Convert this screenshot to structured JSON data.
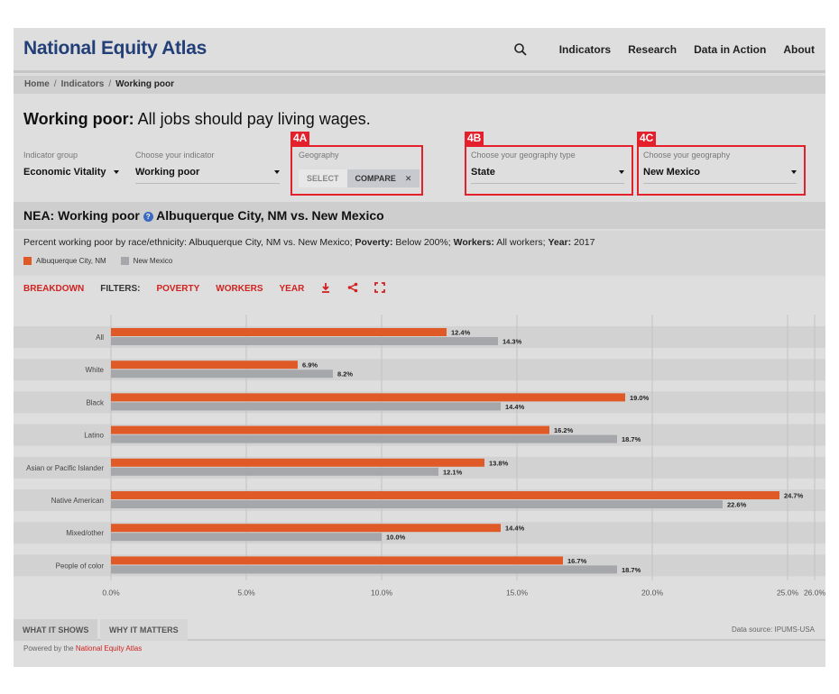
{
  "header": {
    "logo": "National Equity Atlas",
    "nav": [
      "Indicators",
      "Research",
      "Data in Action",
      "About"
    ]
  },
  "breadcrumb": {
    "home": "Home",
    "indicators": "Indicators",
    "current": "Working poor",
    "sep": "/"
  },
  "page": {
    "title_bold": "Working poor:",
    "title_rest": " All jobs should pay living wages."
  },
  "controls": {
    "indicator_group": {
      "label": "Indicator group",
      "value": "Economic Vitality"
    },
    "indicator": {
      "label": "Choose your indicator",
      "value": "Working poor"
    },
    "geography": {
      "label": "Geography",
      "select": "SELECT",
      "compare": "COMPARE",
      "clear": "✕"
    },
    "geo_type": {
      "label": "Choose your geography type",
      "value": "State"
    },
    "geo": {
      "label": "Choose your geography",
      "value": "New Mexico"
    }
  },
  "annotations": {
    "a": "4A",
    "b": "4B",
    "c": "4C"
  },
  "chart_header": {
    "title_pre": "NEA: Working poor",
    "help": "?",
    "title_post": "Albuquerque City, NM vs. New Mexico",
    "subtitle_a": "Percent working poor by race/ethnicity: Albuquerque City, NM vs. New Mexico; ",
    "poverty_label": "Poverty:",
    "poverty_value": " Below 200%; ",
    "workers_label": "Workers:",
    "workers_value": " All workers; ",
    "year_label": "Year:",
    "year_value": " 2017"
  },
  "filters": {
    "breakdown": "BREAKDOWN",
    "filters_label": "FILTERS:",
    "poverty": "POVERTY",
    "workers": "WORKERS",
    "year": "YEAR"
  },
  "icons": {
    "search": "search-icon",
    "download": "download-icon",
    "share": "share-icon",
    "fullscreen": "fullscreen-icon"
  },
  "colors": {
    "series1": "#e05a27",
    "series2": "#a5a7ab",
    "accent": "#d0221f",
    "brand": "#233f78"
  },
  "chart_data": {
    "type": "bar",
    "orientation": "horizontal",
    "categories": [
      "All",
      "White",
      "Black",
      "Latino",
      "Asian or Pacific Islander",
      "Native American",
      "Mixed/other",
      "People of color"
    ],
    "series": [
      {
        "name": "Albuquerque City, NM",
        "values": [
          12.4,
          6.9,
          19.0,
          16.2,
          13.8,
          24.7,
          14.4,
          16.7
        ]
      },
      {
        "name": "New Mexico",
        "values": [
          14.3,
          8.2,
          14.4,
          18.7,
          12.1,
          22.6,
          10.0,
          18.7
        ]
      }
    ],
    "value_labels": [
      [
        "12.4%",
        "6.9%",
        "19.0%",
        "16.2%",
        "13.8%",
        "24.7%",
        "14.4%",
        "16.7%"
      ],
      [
        "14.3%",
        "8.2%",
        "14.4%",
        "18.7%",
        "12.1%",
        "22.6%",
        "10.0%",
        "18.7%"
      ]
    ],
    "x_ticks": [
      "0.0%",
      "5.0%",
      "10.0%",
      "15.0%",
      "20.0%",
      "25.0%",
      "26.0%"
    ],
    "x_tick_values": [
      0,
      5,
      10,
      15,
      20,
      25,
      26
    ],
    "xlim": [
      0,
      26
    ],
    "grid": true,
    "legend": "top-left"
  },
  "footer": {
    "tab1": "WHAT IT SHOWS",
    "tab2": "WHY IT MATTERS",
    "source": "Data source: IPUMS-USA",
    "powered_pre": "Powered by the ",
    "powered_link": "National Equity Atlas"
  }
}
